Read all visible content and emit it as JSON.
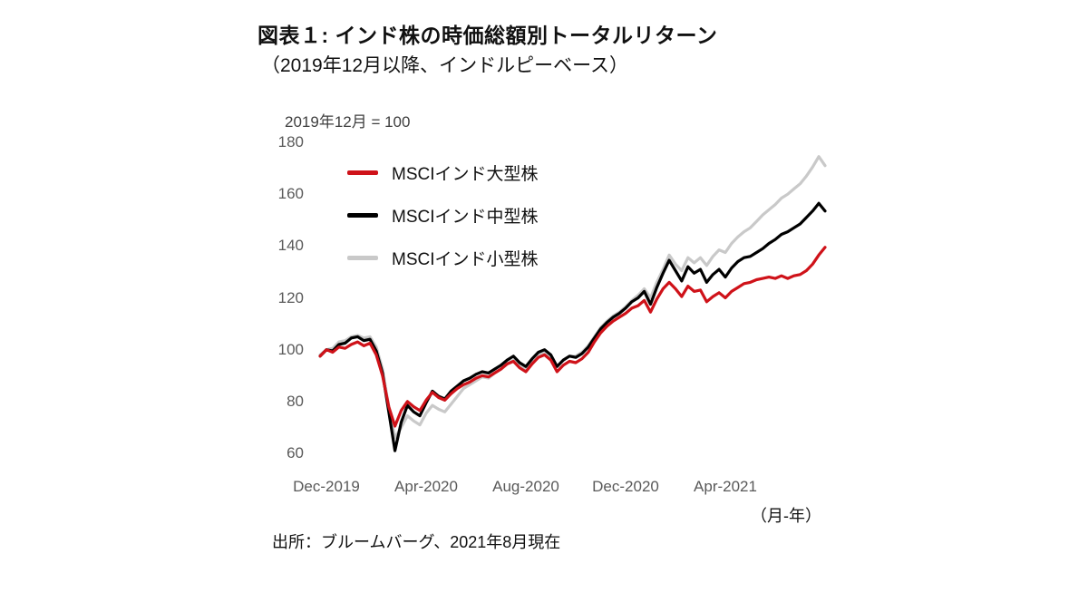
{
  "header": {
    "title": "図表１: インド株の時価総額別トータルリターン",
    "subtitle": "（2019年12月以降、インドルピーベース）"
  },
  "chart": {
    "rebase_note": "2019年12月 = 100",
    "x_unit_label": "（月-年）"
  },
  "footer": {
    "source": "出所：ブルームバーグ、2021年8月現在"
  },
  "colors": {
    "large_cap": "#cf1219",
    "mid_cap": "#000000",
    "small_cap": "#c9c9c9",
    "axis_text": "#595959",
    "background": "#ffffff"
  },
  "chart_data": {
    "type": "line",
    "title": "図表１: インド株の時価総額別トータルリターン",
    "subtitle": "（2019年12月以降、インドルピーベース）",
    "rebase_note": "2019年12月 = 100",
    "grid": false,
    "legend_position": "inside-top-left",
    "x_axis": {
      "label": "（月-年）",
      "tick_labels": [
        "Dec-2019",
        "Apr-2020",
        "Aug-2020",
        "Dec-2020",
        "Apr-2021"
      ],
      "tick_month_offsets": [
        0,
        4,
        8,
        12,
        16
      ]
    },
    "y_axis": {
      "ticks": [
        180,
        160,
        140,
        120,
        100,
        80,
        60
      ],
      "range": [
        60,
        180
      ]
    },
    "x_start_month": -0.25,
    "x_step_month": 0.25,
    "series": [
      {
        "key": "large_cap",
        "name": "MSCIインド大型株",
        "color": "#cf1219",
        "values": [
          97.5,
          100,
          99,
          101,
          100.5,
          102,
          103,
          101.5,
          102.5,
          98,
          90,
          78,
          70.5,
          76.5,
          80,
          78,
          76.5,
          80.5,
          83.5,
          81.5,
          80.5,
          83,
          85,
          86.5,
          87.5,
          89,
          90,
          89.5,
          91,
          92.5,
          94.5,
          95.5,
          93,
          91.5,
          94.5,
          97,
          98,
          96,
          91.5,
          94,
          95.5,
          95,
          96.5,
          99,
          103,
          106.5,
          109,
          111,
          112.5,
          114,
          116,
          117,
          119,
          114.5,
          119.5,
          123.5,
          126,
          123.5,
          120.5,
          124.5,
          122.5,
          123,
          118.5,
          120.5,
          122,
          120,
          122.5,
          124,
          125.5,
          126,
          127,
          127.5,
          128,
          127.5,
          128.5,
          127.5,
          128.5,
          129,
          130.5,
          133,
          136.5,
          139.5
        ]
      },
      {
        "key": "mid_cap",
        "name": "MSCIインド中型株",
        "color": "#000000",
        "values": [
          97.5,
          100,
          99.5,
          102,
          102.5,
          104.5,
          105,
          103.5,
          104,
          99.5,
          91,
          76,
          61,
          72,
          78.5,
          76,
          74.5,
          79.5,
          84,
          82,
          81,
          84,
          86,
          88,
          89,
          90.5,
          91.5,
          91,
          92.5,
          94,
          96,
          97.5,
          95,
          93.5,
          96.5,
          99,
          100,
          98,
          93.5,
          96,
          97.5,
          97,
          98.5,
          101,
          104.5,
          108,
          110.5,
          112.5,
          114,
          116,
          118.5,
          120,
          122.5,
          117.5,
          124,
          129.5,
          134.5,
          130.5,
          126.5,
          132,
          129.5,
          131,
          126,
          129,
          131,
          128,
          131.5,
          134,
          135.5,
          136,
          137.5,
          139,
          141,
          142.5,
          144.5,
          145.5,
          147,
          148.5,
          151,
          153.5,
          156.5,
          153.5
        ]
      },
      {
        "key": "small_cap",
        "name": "MSCIインド小型株",
        "color": "#c9c9c9",
        "values": [
          98,
          100,
          100.5,
          103,
          103.5,
          105,
          105.5,
          104.5,
          105,
          101,
          92.5,
          78,
          66,
          70,
          74.5,
          72.5,
          71,
          75.5,
          78.5,
          77,
          76,
          79,
          82,
          85,
          86.5,
          88,
          89.5,
          89,
          91,
          92.5,
          94.5,
          96,
          94,
          92.5,
          95.5,
          98,
          99,
          97.5,
          93.5,
          96,
          97.5,
          97.5,
          99,
          101.5,
          105,
          108.5,
          111,
          113,
          114.5,
          116.5,
          119,
          121,
          123.5,
          120,
          126,
          131,
          136.5,
          133,
          130.5,
          135.5,
          133.5,
          135.5,
          132.5,
          136,
          138.5,
          137.5,
          141,
          143.5,
          145.5,
          147,
          149.5,
          152,
          154,
          156,
          158.5,
          160,
          162,
          164,
          167,
          170.5,
          174.5,
          171
        ]
      }
    ]
  }
}
